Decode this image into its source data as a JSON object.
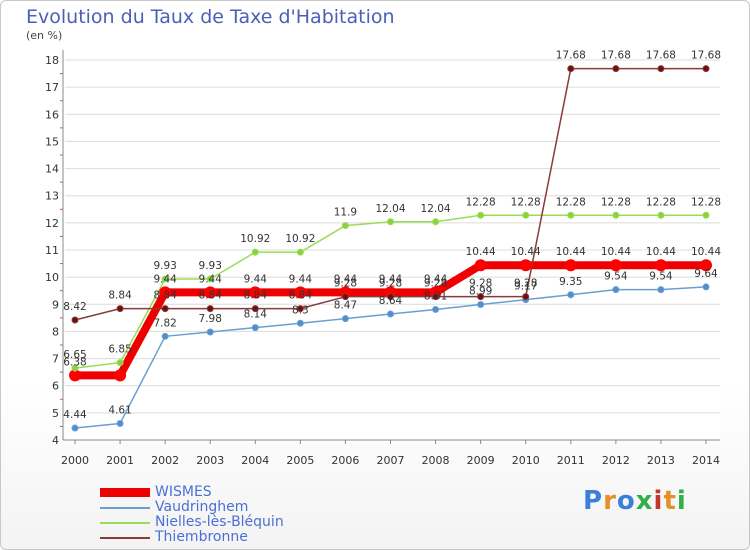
{
  "title": "Evolution du Taux de Taxe d'Habitation",
  "subtitle": "(en %)",
  "logo": {
    "text": "Proxiti",
    "colors": [
      "#3a7fd9",
      "#e3902a",
      "#3a7fd9",
      "#2fb04a",
      "#c0392b",
      "#e3902a",
      "#2fb04a"
    ]
  },
  "chart_data": {
    "type": "line",
    "title": "Evolution du Taux de Taxe d'Habitation",
    "ylabel": "(en %)",
    "xlabel": "",
    "x": [
      "2000",
      "2001",
      "2002",
      "2003",
      "2004",
      "2005",
      "2006",
      "2007",
      "2008",
      "2009",
      "2010",
      "2011",
      "2012",
      "2013",
      "2014"
    ],
    "ylim": [
      4,
      18
    ],
    "yticks": [
      "4",
      "5",
      "6",
      "7",
      "8",
      "9",
      "10",
      "11",
      "12",
      "13",
      "14",
      "15",
      "16",
      "17",
      "18"
    ],
    "grid": true,
    "legend_position": "bottom-left",
    "series": [
      {
        "name": "WISMES",
        "color": "#ee0000",
        "values": [
          6.38,
          6.38,
          9.44,
          9.44,
          9.44,
          9.44,
          9.44,
          9.44,
          9.44,
          10.44,
          10.44,
          10.44,
          10.44,
          10.44,
          10.44
        ],
        "labels": [
          "6.38",
          "",
          "9.44",
          "9.44",
          "9.44",
          "9.44",
          "9.44",
          "9.44",
          "9.44",
          "10.44",
          "10.44",
          "10.44",
          "10.44",
          "10.44",
          "10.44"
        ]
      },
      {
        "name": "Vaudringhem",
        "color": "#6c9fcf",
        "values": [
          4.44,
          4.61,
          7.82,
          7.98,
          8.14,
          8.3,
          8.47,
          8.64,
          8.81,
          8.99,
          9.17,
          9.35,
          9.54,
          9.54,
          9.64
        ],
        "labels": [
          "4.44",
          "4.61",
          "7.82",
          "7.98",
          "8.14",
          "8.3",
          "8.47",
          "8.64",
          "8.81",
          "8.99",
          "9.17",
          "9.35",
          "9.54",
          "9.54",
          "9.64"
        ]
      },
      {
        "name": "Nielles-lès-Bléquin",
        "color": "#99dd55",
        "values": [
          6.65,
          6.85,
          9.93,
          9.93,
          10.92,
          10.92,
          11.9,
          12.04,
          12.04,
          12.28,
          12.28,
          12.28,
          12.28,
          12.28,
          12.28
        ],
        "labels": [
          "6.65",
          "6.85",
          "9.93",
          "9.93",
          "10.92",
          "10.92",
          "11.9",
          "12.04",
          "12.04",
          "12.28",
          "12.28",
          "12.28",
          "12.28",
          "12.28",
          "12.28"
        ]
      },
      {
        "name": "Thiembronne",
        "color": "#8b3a3a",
        "values": [
          8.42,
          8.84,
          8.84,
          8.84,
          8.84,
          8.84,
          9.28,
          9.28,
          9.28,
          9.28,
          9.28,
          17.68,
          17.68,
          17.68,
          17.68
        ],
        "labels": [
          "8.42",
          "8.84",
          "8.84",
          "8.84",
          "8.84",
          "8.84",
          "9.28",
          "9.28",
          "9.28",
          "9.28",
          "9.28",
          "17.68",
          "17.68",
          "17.68",
          "17.68"
        ]
      }
    ]
  }
}
